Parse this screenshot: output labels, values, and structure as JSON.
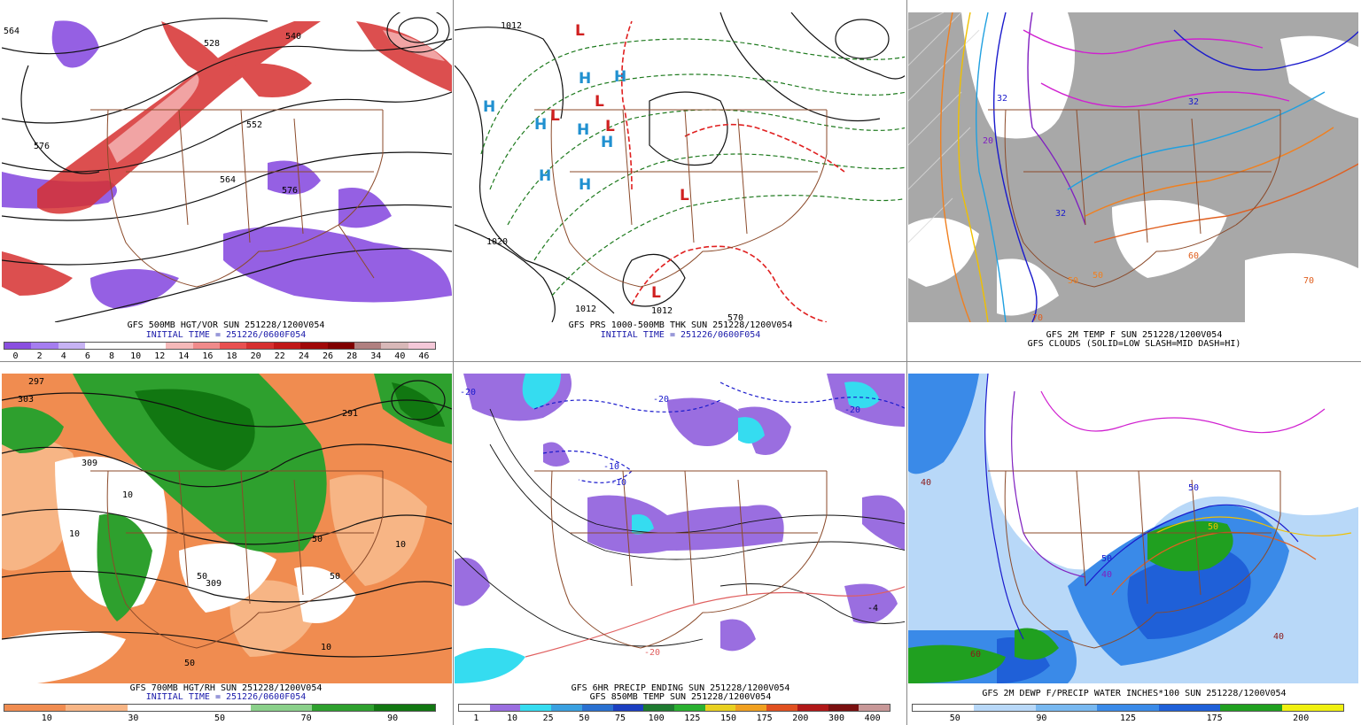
{
  "panels": [
    {
      "id": "p1",
      "caption1": "GFS 500MB HGT/VOR SUN 251228/1200V054",
      "caption2": "INITIAL TIME = 251226/0600F054",
      "colors": [
        "#8a4fe0",
        "#a57df0",
        "#c7b3f4",
        "#ffffff",
        "#ffffff",
        "#ffffff",
        "#f6b9b9",
        "#f08a8a",
        "#e85050",
        "#d63030",
        "#c01818",
        "#a00808",
        "#800000",
        "#b08080",
        "#d8b8b8",
        "#f4c8d8"
      ],
      "ticks": [
        "0",
        "2",
        "4",
        "6",
        "8",
        "10",
        "12",
        "14",
        "16",
        "18",
        "20",
        "22",
        "24",
        "26",
        "28",
        "34",
        "40",
        "46"
      ],
      "contour_labels": [
        "564",
        "528",
        "540",
        "576",
        "552",
        "564",
        "576"
      ]
    },
    {
      "id": "p2",
      "caption1": "GFS PRS 1000-500MB THK SUN 251228/1200V054",
      "caption2": "INITIAL TIME = 251226/0600F054",
      "contour_labels": [
        "1012",
        "1020",
        "1012",
        "1012",
        "570"
      ],
      "highs": [
        "H",
        "H",
        "H",
        "H",
        "H",
        "H",
        "H",
        "H"
      ],
      "lows": [
        "L",
        "L",
        "L",
        "L",
        "L",
        "L"
      ]
    },
    {
      "id": "p3",
      "caption1": "GFS 2M TEMP F SUN 251228/1200V054",
      "caption2": "GFS CLOUDS (SOLID=LOW SLASH=MID DASH=HI)",
      "contour_labels": [
        "32",
        "32",
        "32",
        "20",
        "50",
        "70",
        "60",
        "50",
        "70"
      ]
    },
    {
      "id": "p4",
      "caption1": "GFS 700MB HGT/RH SUN 251228/1200V054",
      "caption2": "INITIAL TIME = 251226/0600F054",
      "colors": [
        "#f08c50",
        "#f7b585",
        "#fff",
        "#fff",
        "#8ad08a",
        "#2ea02e",
        "#117711"
      ],
      "ticks": [
        "10",
        "30",
        "50",
        "70",
        "90"
      ],
      "contour_labels": [
        "297",
        "303",
        "291",
        "309",
        "10",
        "10",
        "50",
        "50",
        "309",
        "50",
        "10",
        "10",
        "50"
      ]
    },
    {
      "id": "p5",
      "caption1": "GFS 6HR PRECIP ENDING SUN 251228/1200V054",
      "caption2": "GFS 850MB TEMP SUN 251228/1200V054",
      "colors": [
        "#ffffff",
        "#9a6ee0",
        "#35dcf0",
        "#3aa0e0",
        "#2a70d0",
        "#1c3fc0",
        "#1e7a30",
        "#2ab030",
        "#e8d020",
        "#f0a020",
        "#e05020",
        "#b01818",
        "#7a1010",
        "#c89898"
      ],
      "ticks": [
        "1",
        "10",
        "25",
        "50",
        "75",
        "100",
        "125",
        "150",
        "175",
        "200",
        "300",
        "400"
      ],
      "contour_labels": [
        "-10",
        "-10",
        "-20",
        "-20",
        "-20",
        "-4",
        "-20"
      ]
    },
    {
      "id": "p6",
      "caption1": "GFS 2M DEWP F/PRECIP WATER INCHES*100 SUN 251228/1200V054",
      "colors": [
        "#ffffff",
        "#b8d8f8",
        "#78b8f0",
        "#3a8ae8",
        "#1f60d8",
        "#20a020",
        "#f0f010"
      ],
      "ticks": [
        "50",
        "90",
        "125",
        "175",
        "200"
      ],
      "contour_labels": [
        "40",
        "40",
        "50",
        "50",
        "50",
        "60",
        "40"
      ]
    }
  ]
}
